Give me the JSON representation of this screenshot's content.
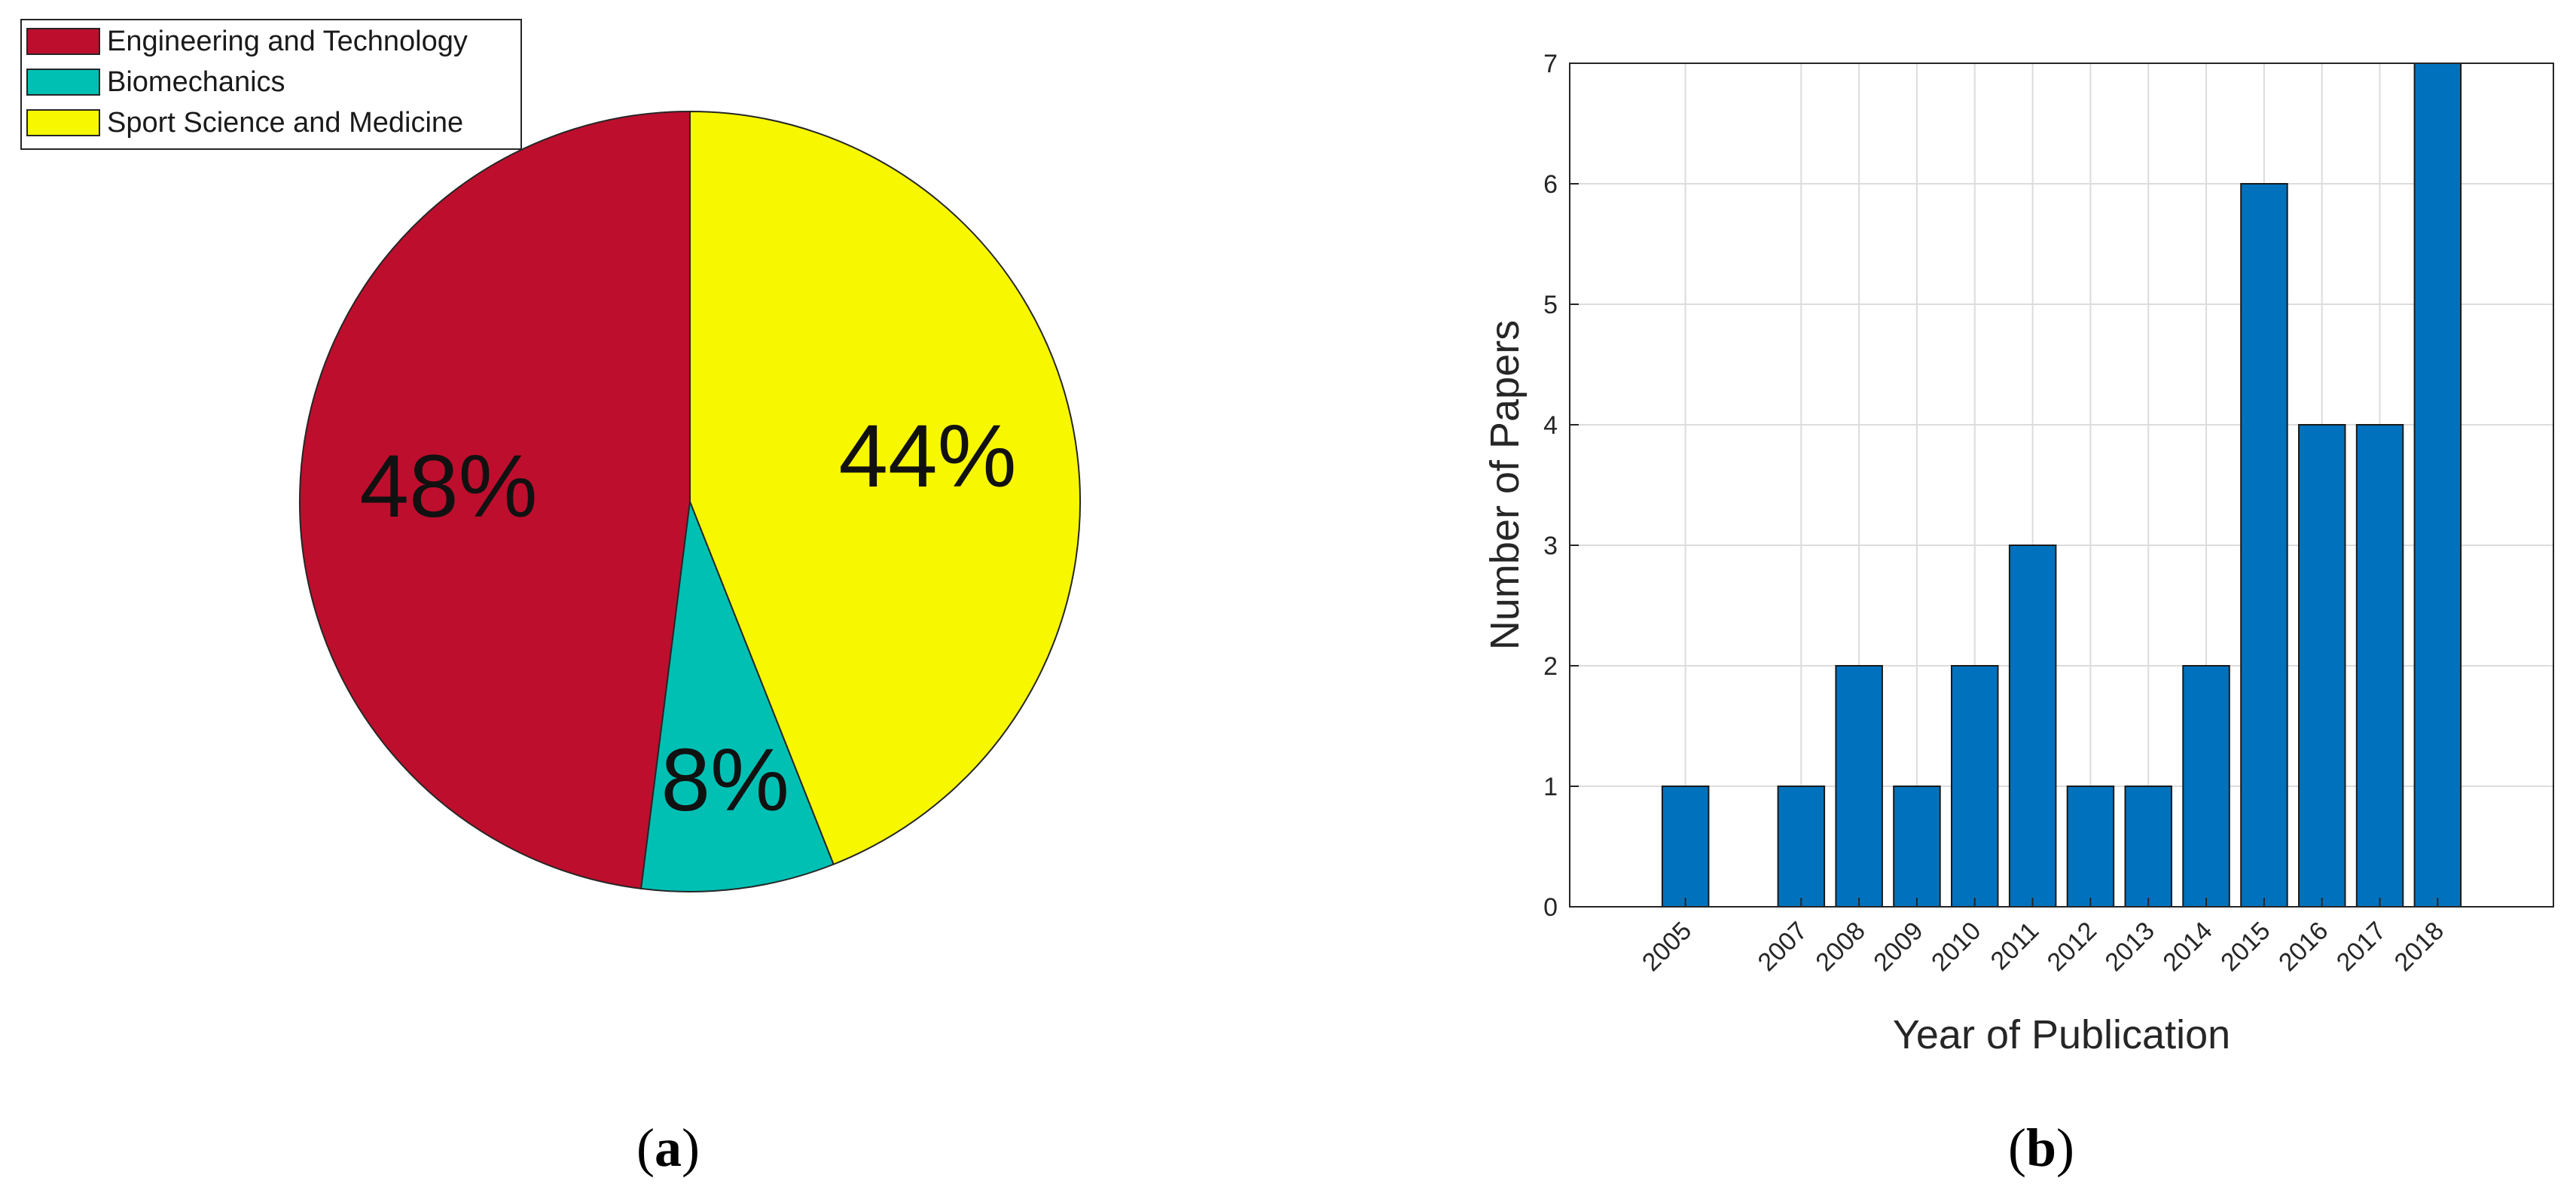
{
  "chart_data": [
    {
      "type": "pie",
      "slices": [
        {
          "label": "Engineering and Technology",
          "value": 48,
          "display": "48%",
          "color": "#be0e2d"
        },
        {
          "label": "Biomechanics",
          "value": 8,
          "display": "8%",
          "color": "#00c0b4"
        },
        {
          "label": "Sport Science and Medicine",
          "value": 44,
          "display": "44%",
          "color": "#f7f700"
        }
      ],
      "legend_position": "top-left",
      "panel_label": {
        "open": "(",
        "letter": "a",
        "close": ")"
      }
    },
    {
      "type": "bar",
      "categories": [
        "2005",
        "2007",
        "2008",
        "2009",
        "2010",
        "2011",
        "2012",
        "2013",
        "2014",
        "2015",
        "2016",
        "2017",
        "2018"
      ],
      "x": [
        2005,
        2007,
        2008,
        2009,
        2010,
        2011,
        2012,
        2013,
        2014,
        2015,
        2016,
        2017,
        2018
      ],
      "values": [
        1,
        1,
        2,
        1,
        2,
        3,
        1,
        1,
        2,
        6,
        4,
        4,
        7
      ],
      "xlim": [
        2003,
        2020
      ],
      "ylim": [
        0,
        7
      ],
      "yticks": [
        0,
        1,
        2,
        3,
        4,
        5,
        6,
        7
      ],
      "xlabel": "Year of Publication",
      "ylabel": "Number of Papers",
      "grid": true,
      "bar_color": "#0072bd",
      "panel_label": {
        "open": "(",
        "letter": "b",
        "close": ")"
      }
    }
  ]
}
